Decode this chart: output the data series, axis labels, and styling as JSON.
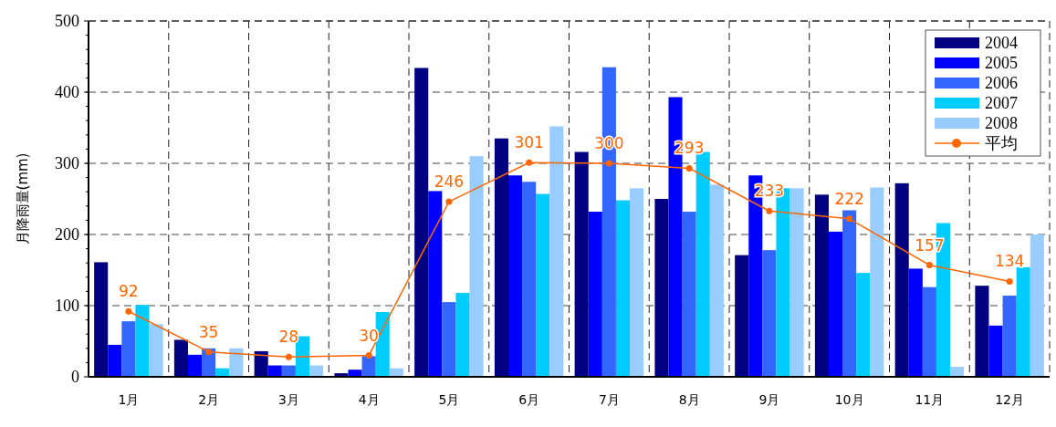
{
  "chart_data": {
    "type": "bar",
    "ylabel": "月降雨量(mm)",
    "categories": [
      "1月",
      "2月",
      "3月",
      "4月",
      "5月",
      "6月",
      "7月",
      "8月",
      "9月",
      "10月",
      "11月",
      "12月"
    ],
    "series": [
      {
        "name": "2004",
        "color": "#000080",
        "values": [
          161,
          52,
          36,
          5,
          434,
          335,
          316,
          250,
          171,
          256,
          272,
          128
        ]
      },
      {
        "name": "2005",
        "color": "#0000ff",
        "values": [
          45,
          31,
          16,
          10,
          261,
          283,
          232,
          393,
          283,
          204,
          152,
          72
        ]
      },
      {
        "name": "2006",
        "color": "#3366ff",
        "values": [
          78,
          40,
          16,
          29,
          105,
          274,
          435,
          232,
          178,
          234,
          126,
          114
        ]
      },
      {
        "name": "2007",
        "color": "#00ccff",
        "values": [
          101,
          12,
          57,
          91,
          118,
          257,
          248,
          316,
          265,
          146,
          216,
          154
        ]
      },
      {
        "name": "2008",
        "color": "#99ccff",
        "values": [
          74,
          40,
          16,
          12,
          310,
          352,
          265,
          270,
          265,
          266,
          14,
          200
        ]
      },
      {
        "name": "平均",
        "type": "line",
        "color": "#ff6600",
        "marker": "circle",
        "line_style": "solid",
        "values": [
          92,
          35,
          28,
          30,
          246,
          301,
          300,
          293,
          233,
          222,
          157,
          134
        ],
        "value_labels": [
          "92",
          "35",
          "28",
          "30",
          "246",
          "301",
          "300",
          "293",
          "233",
          "222",
          "157",
          "134"
        ]
      }
    ],
    "ylim": [
      0,
      500
    ],
    "yticks": [
      0,
      100,
      200,
      300,
      400,
      500
    ],
    "grid": true,
    "legend": "top right"
  }
}
